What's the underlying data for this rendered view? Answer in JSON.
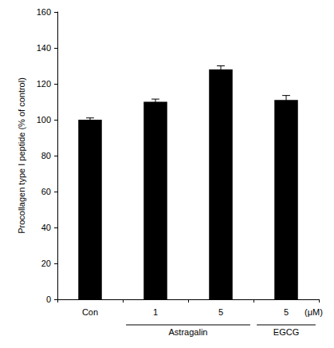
{
  "chart_data": {
    "type": "bar",
    "categories": [
      "Con",
      "1",
      "5",
      "5"
    ],
    "values": [
      100,
      110,
      128,
      111
    ],
    "errors": [
      1,
      1.5,
      2,
      2.5
    ],
    "color": "#000000",
    "ylabel": "Procollagen type I peptide (% of control)",
    "xlabel": "(μM)",
    "groups": [
      {
        "label": "Astragalin",
        "start": 1,
        "end": 2
      },
      {
        "label": "EGCG",
        "start": 3,
        "end": 3
      }
    ],
    "ylim": [
      0,
      160
    ],
    "yticks": [
      0,
      20,
      40,
      60,
      80,
      100,
      120,
      140,
      160
    ],
    "grid": false
  }
}
